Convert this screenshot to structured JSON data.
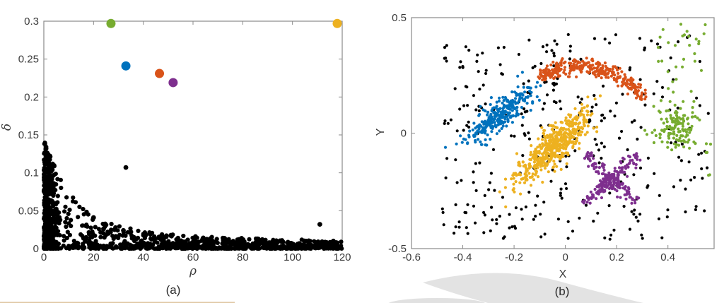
{
  "figure": {
    "captions": {
      "a": "(a)",
      "b": "(b)"
    }
  },
  "palette": {
    "blue": "#0072BD",
    "orange": "#D95319",
    "yellow": "#EDB120",
    "purple": "#7E2F8E",
    "green": "#77AC30",
    "black": "#000000",
    "axis_line": "#8a8a8a",
    "tick_text": "#3a3a3a",
    "watermark": "#dedede",
    "bottom_artifact": "#d9bd93"
  },
  "chart_data": [
    {
      "id": "decision-graph",
      "type": "scatter",
      "title": "",
      "xlabel": "ρ",
      "ylabel": "δ",
      "xlim": [
        0,
        120
      ],
      "ylim": [
        0,
        0.3
      ],
      "xticks": [
        0,
        20,
        40,
        60,
        80,
        100,
        120
      ],
      "xtick_labels": [
        "0",
        "20",
        "40",
        "60",
        "80",
        "100",
        "120"
      ],
      "yticks": [
        0,
        0.05,
        0.1,
        0.15,
        0.2,
        0.25,
        0.3
      ],
      "ytick_labels": [
        "0",
        "0.05",
        "0.1",
        "0.15",
        "0.2",
        "0.25",
        "0.3"
      ],
      "grid": false,
      "legend": null,
      "cluster_peaks": [
        {
          "color": "green",
          "rho": 27,
          "delta": 0.297
        },
        {
          "color": "yellow",
          "rho": 118,
          "delta": 0.297
        },
        {
          "color": "blue",
          "rho": 33,
          "delta": 0.241
        },
        {
          "color": "orange",
          "rho": 46.5,
          "delta": 0.231
        },
        {
          "color": "purple",
          "rho": 52,
          "delta": 0.219
        }
      ],
      "black_outliers": [
        [
          33,
          0.107
        ],
        [
          20,
          0.041
        ],
        [
          111,
          0.032
        ],
        [
          28.5,
          0.025
        ],
        [
          32,
          0.024
        ],
        [
          35,
          0.022
        ],
        [
          41,
          0.018
        ],
        [
          24,
          0.026
        ],
        [
          47,
          0.016
        ]
      ],
      "background_points": {
        "description": "dense black decay mass: tall spike at rho<8 reaching delta 0.115, band hugging delta<0.02 out to rho=120",
        "count": 1400,
        "seed": 7,
        "left_spike_fraction": 0.38,
        "envelope": "0.115*exp(-rho/12)+0.022*exp(-rho/60)+0.008"
      }
    },
    {
      "id": "cluster-scatter",
      "type": "scatter",
      "title": "",
      "xlabel": "X",
      "ylabel": "Y",
      "xlim": [
        -0.6,
        0.58
      ],
      "ylim": [
        -0.5,
        0.5
      ],
      "xticks": [
        -0.6,
        -0.4,
        -0.2,
        0,
        0.2,
        0.4
      ],
      "xtick_labels": [
        "-0.6",
        "-0.4",
        "-0.2",
        "0",
        "0.2",
        "0.4"
      ],
      "yticks": [
        -0.5,
        0,
        0.5
      ],
      "ytick_labels": [
        "-0.5",
        "0",
        "0.5"
      ],
      "grid": false,
      "legend": null,
      "seed": 11,
      "clusters": [
        {
          "name": "noise",
          "color": "black",
          "shape": "uniform",
          "x_range": [
            -0.48,
            0.56
          ],
          "y_range": [
            -0.46,
            0.43
          ],
          "count": 330
        },
        {
          "name": "blue",
          "color": "blue",
          "shape": "gauss-rot",
          "center": [
            -0.26,
            0.075
          ],
          "angle_deg": 42,
          "sigma": [
            0.082,
            0.026
          ],
          "count": 290
        },
        {
          "name": "orange",
          "color": "orange",
          "shape": "parabola",
          "x_range": [
            -0.1,
            0.31
          ],
          "vertex": [
            0.05,
            0.29
          ],
          "a": -1.9,
          "noise": 0.018,
          "count": 300
        },
        {
          "name": "yellow",
          "color": "yellow",
          "shape": "gauss-rot",
          "center": [
            -0.05,
            -0.06
          ],
          "angle_deg": 48,
          "sigma": [
            0.105,
            0.03
          ],
          "count": 520
        },
        {
          "name": "purple",
          "color": "purple",
          "shape": "x-cross",
          "center": [
            0.18,
            -0.2
          ],
          "arm": 0.105,
          "noise": 0.015,
          "count": 260
        },
        {
          "name": "green",
          "color": "green",
          "shape": "gauss",
          "center": [
            0.43,
            0.03
          ],
          "sigma": [
            0.04,
            0.05
          ],
          "count": 130
        },
        {
          "name": "green-trail",
          "color": "green",
          "shape": "uniform",
          "x_range": [
            0.36,
            0.57
          ],
          "y_range": [
            0.12,
            0.48
          ],
          "count": 30
        },
        {
          "name": "green-lower",
          "color": "green",
          "shape": "uniform",
          "x_range": [
            0.44,
            0.57
          ],
          "y_range": [
            -0.22,
            0.08
          ],
          "count": 9
        }
      ]
    }
  ]
}
